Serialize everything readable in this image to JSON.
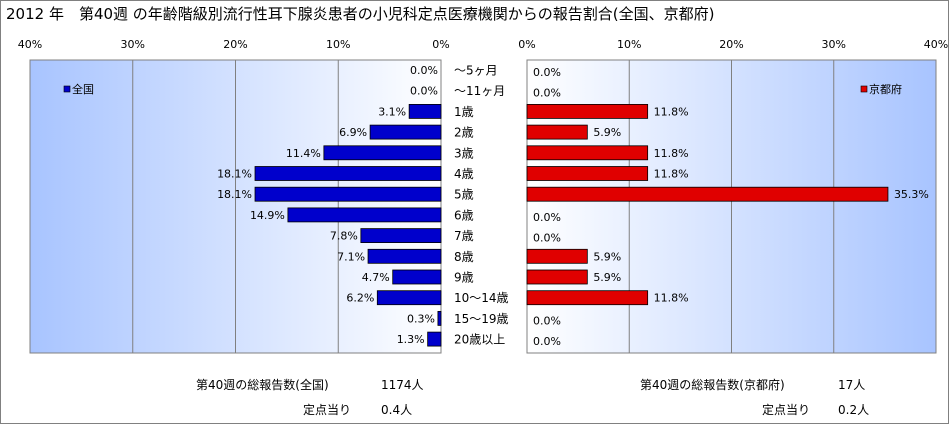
{
  "title": "2012 年　第40週 の年齢階級別流行性耳下腺炎患者の小児科定点医療機関からの報告割合(全国、京都府)",
  "colors": {
    "national_bar": "#0000cc",
    "kyoto_bar": "#e00000",
    "plot_bg_top": "#a8c4ff",
    "plot_bg_bottom": "#ffffff",
    "gridline": "#808080"
  },
  "chart_data": {
    "type": "bar",
    "orientation": "horizontal-butterfly",
    "categories": [
      "～5ヶ月",
      "～11ヶ月",
      "1歳",
      "2歳",
      "3歳",
      "4歳",
      "5歳",
      "6歳",
      "7歳",
      "8歳",
      "9歳",
      "10～14歳",
      "15～19歳",
      "20歳以上"
    ],
    "xlim": [
      0,
      40
    ],
    "x_ticks_left": [
      "40%",
      "30%",
      "20%",
      "10%",
      "0%"
    ],
    "x_ticks_right": [
      "0%",
      "10%",
      "20%",
      "30%",
      "40%"
    ],
    "grid": true,
    "series": [
      {
        "name": "全国",
        "side": "left",
        "legend_position": "top-left",
        "values": [
          0.0,
          0.0,
          3.1,
          6.9,
          11.4,
          18.1,
          18.1,
          14.9,
          7.8,
          7.1,
          4.7,
          6.2,
          0.3,
          1.3
        ],
        "labels": [
          "0.0%",
          "0.0%",
          "3.1%",
          "6.9%",
          "11.4%",
          "18.1%",
          "18.1%",
          "14.9%",
          "7.8%",
          "7.1%",
          "4.7%",
          "6.2%",
          "0.3%",
          "1.3%"
        ]
      },
      {
        "name": "京都府",
        "side": "right",
        "legend_position": "top-right",
        "values": [
          0.0,
          0.0,
          11.8,
          5.9,
          11.8,
          11.8,
          35.3,
          0.0,
          0.0,
          5.9,
          5.9,
          11.8,
          0.0,
          0.0
        ],
        "labels": [
          "0.0%",
          "0.0%",
          "11.8%",
          "5.9%",
          "11.8%",
          "11.8%",
          "35.3%",
          "0.0%",
          "0.0%",
          "5.9%",
          "5.9%",
          "11.8%",
          "0.0%",
          "0.0%"
        ]
      }
    ]
  },
  "footer": {
    "national_total_label": "第40週の総報告数(全国)",
    "national_total_value": "1174人",
    "national_per_label": "定点当り",
    "national_per_value": "0.4人",
    "kyoto_total_label": "第40週の総報告数(京都府)",
    "kyoto_total_value": "17人",
    "kyoto_per_label": "定点当り",
    "kyoto_per_value": "0.2人"
  }
}
